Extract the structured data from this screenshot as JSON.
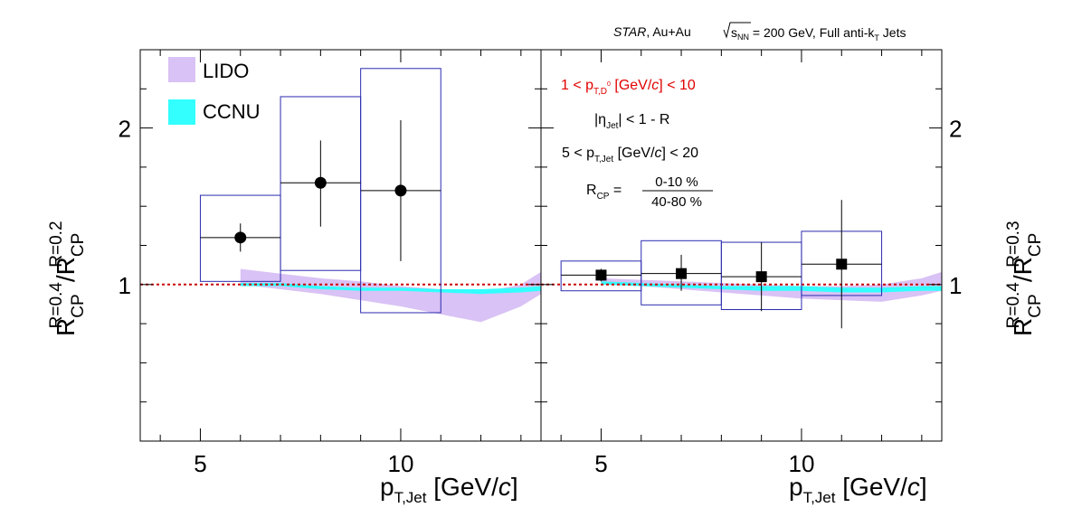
{
  "header": {
    "experiment": "STAR",
    "collision": ", Au+Au",
    "energy_sym": "s",
    "energy_sub": "NN",
    "energy_text": " = 200 GeV, Full anti-k",
    "jets_sub": "T",
    "jets_text": " Jets"
  },
  "legend": {
    "lido": "LIDO",
    "ccnu": "CCNU"
  },
  "annotations": {
    "dpt_pre": "1 < p",
    "dpt_sub": "T,D",
    "dpt_sup": "0",
    "dpt_unit": " [GeV/",
    "dpt_c": "c",
    "dpt_post": "] < 10",
    "eta_pre": "|η",
    "eta_sub": "Jet",
    "eta_post": "| < 1 - R",
    "jpt_pre": "5 < p",
    "jpt_sub": "T,Jet",
    "jpt_unit": " [GeV/",
    "jpt_c": "c",
    "jpt_post": "] < 20",
    "rcp_pre": "R",
    "rcp_sub": "CP",
    "rcp_eq": " =",
    "rcp_num": "0-10 %",
    "rcp_den": "40-80 %"
  },
  "colors": {
    "frame": "#000000",
    "sys_box": "#2b2bb0",
    "lido": "#d9c2f5",
    "ccnu": "#33ffff",
    "unity_line": "#cc0000",
    "dpt_text": "#e00000"
  },
  "chart_data": [
    {
      "type": "scatter",
      "panel": "left",
      "xlabel_main": "p",
      "xlabel_sub": "T,Jet",
      "xlabel_unit": " [GeV/",
      "xlabel_c": "c",
      "xlabel_end": "]",
      "ylabel_main": "R",
      "ylabel_sub": "CP",
      "ylabel_sup": "R=0.4",
      "ylabel_slash": "/R",
      "ylabel_sub2": "CP",
      "ylabel_sup2": "R=0.2",
      "xlim": [
        3.5,
        13.5
      ],
      "ylim": [
        0,
        2.5
      ],
      "xticks": [
        5,
        10
      ],
      "yticks": [
        1,
        2
      ],
      "marker": "circle",
      "points": [
        {
          "x": 6,
          "y": 1.3,
          "xlo": 5,
          "xhi": 7,
          "err_lo": 0.09,
          "err_hi": 0.09,
          "sys_lo": 1.02,
          "sys_hi": 1.57
        },
        {
          "x": 8,
          "y": 1.65,
          "xlo": 7,
          "xhi": 9,
          "err_lo": 0.28,
          "err_hi": 0.27,
          "sys_lo": 1.09,
          "sys_hi": 2.2
        },
        {
          "x": 10,
          "y": 1.6,
          "xlo": 9,
          "xhi": 11,
          "err_lo": 0.45,
          "err_hi": 0.45,
          "sys_lo": 0.82,
          "sys_hi": 2.38
        }
      ],
      "lido_band": {
        "x": [
          6,
          7,
          8,
          9,
          10,
          11,
          12,
          13,
          13.5
        ],
        "upper": [
          1.1,
          1.07,
          1.04,
          1.02,
          0.99,
          0.97,
          0.95,
          1.0,
          1.08
        ],
        "lower": [
          1.0,
          0.97,
          0.94,
          0.9,
          0.86,
          0.81,
          0.76,
          0.86,
          0.94
        ]
      },
      "ccnu_band": {
        "x": [
          6,
          7,
          8,
          9,
          10,
          11,
          12,
          13,
          13.5
        ],
        "upper": [
          1.01,
          1.01,
          0.99,
          0.98,
          0.98,
          0.97,
          0.97,
          0.98,
          0.99
        ],
        "lower": [
          0.99,
          0.99,
          0.97,
          0.96,
          0.96,
          0.95,
          0.94,
          0.95,
          0.96
        ]
      }
    },
    {
      "type": "scatter",
      "panel": "right",
      "xlabel_main": "p",
      "xlabel_sub": "T,Jet",
      "xlabel_unit": " [GeV/",
      "xlabel_c": "c",
      "xlabel_end": "]",
      "ylabel_main": "R",
      "ylabel_sub": "CP",
      "ylabel_sup": "R=0.4",
      "ylabel_slash": "/R",
      "ylabel_sub2": "CP",
      "ylabel_sup2": "R=0.3",
      "xlim": [
        3.5,
        13.5
      ],
      "ylim": [
        0,
        2.5
      ],
      "xticks": [
        5,
        10
      ],
      "yticks": [
        1,
        2
      ],
      "marker": "square",
      "points": [
        {
          "x": 5,
          "y": 1.06,
          "xlo": 4,
          "xhi": 6,
          "err_lo": 0.04,
          "err_hi": 0.04,
          "sys_lo": 0.96,
          "sys_hi": 1.15
        },
        {
          "x": 7,
          "y": 1.07,
          "xlo": 6,
          "xhi": 8,
          "err_lo": 0.11,
          "err_hi": 0.12,
          "sys_lo": 0.87,
          "sys_hi": 1.28
        },
        {
          "x": 9,
          "y": 1.05,
          "xlo": 8,
          "xhi": 10,
          "err_lo": 0.22,
          "err_hi": 0.22,
          "sys_lo": 0.84,
          "sys_hi": 1.27
        },
        {
          "x": 11,
          "y": 1.13,
          "xlo": 10,
          "xhi": 12,
          "err_lo": 0.41,
          "err_hi": 0.41,
          "sys_lo": 0.93,
          "sys_hi": 1.34
        }
      ],
      "lido_band": {
        "x": [
          5,
          6,
          7,
          8,
          9,
          10,
          11,
          12,
          13,
          13.5
        ],
        "upper": [
          1.04,
          1.03,
          1.02,
          1.01,
          1.0,
          0.99,
          0.99,
          1.0,
          1.04,
          1.08
        ],
        "lower": [
          1.0,
          0.99,
          0.97,
          0.95,
          0.93,
          0.91,
          0.9,
          0.89,
          0.93,
          0.96
        ]
      },
      "ccnu_band": {
        "x": [
          5,
          6,
          7,
          8,
          9,
          10,
          11,
          12,
          13,
          13.5
        ],
        "upper": [
          1.02,
          1.01,
          1.0,
          0.99,
          0.99,
          0.99,
          0.98,
          0.98,
          0.99,
          0.99
        ],
        "lower": [
          1.0,
          0.99,
          0.98,
          0.97,
          0.96,
          0.96,
          0.95,
          0.95,
          0.96,
          0.96
        ]
      }
    }
  ]
}
